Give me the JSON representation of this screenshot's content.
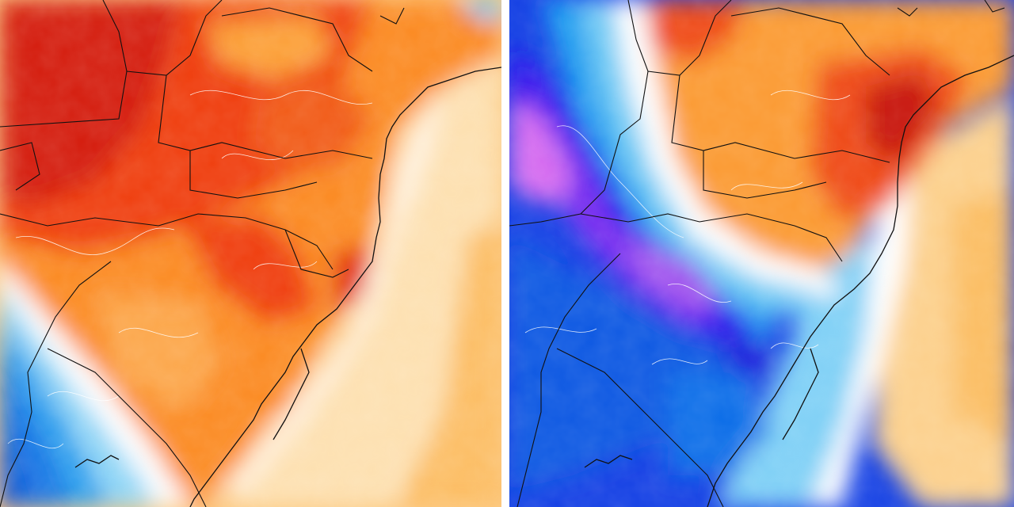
{
  "panels": [
    {
      "id": "left",
      "palette": [
        "#d41e0c",
        "#ef3d10",
        "#f7661a",
        "#fb8a23",
        "#fcab3f",
        "#fdc97a",
        "#fee3b6",
        "#ffffff",
        "#b8e8f8",
        "#5ec4f1",
        "#1690e6",
        "#0d55d8"
      ]
    },
    {
      "id": "right",
      "palette": [
        "#7a10ff",
        "#b04bea",
        "#e57af0",
        "#1a1adc",
        "#0f44e6",
        "#0d70e8",
        "#2aa6ef",
        "#8fd8f6",
        "#ffffff",
        "#fdc97a",
        "#f7661a",
        "#c8150c"
      ]
    }
  ],
  "colors": {
    "border_line": "#111111",
    "contour_line": "#ffffff",
    "ocean": "#fdd8a0"
  }
}
